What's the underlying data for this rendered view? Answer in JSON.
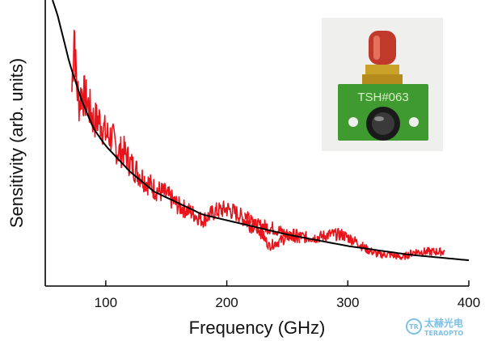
{
  "chart_data": {
    "type": "line",
    "title": "",
    "xlabel": "Frequency (GHz)",
    "ylabel": "Sensitivity (arb. units)",
    "xlim": [
      50,
      400
    ],
    "ylim": [
      0,
      1
    ],
    "xticks": [
      100,
      200,
      300,
      400
    ],
    "x_tick_labels": [
      "100",
      "200",
      "300",
      "400"
    ],
    "y_tick_labels_shown": false,
    "grid": false,
    "series": [
      {
        "color": "#e8141b",
        "style": "noisy-measured",
        "x": [
          72,
          73,
          74,
          75,
          76,
          78,
          80,
          85,
          90,
          95,
          100,
          105,
          110,
          115,
          120,
          130,
          140,
          150,
          160,
          170,
          180,
          190,
          200,
          210,
          220,
          230,
          240,
          250,
          260
        ],
        "y": [
          0.68,
          0.8,
          0.93,
          0.77,
          0.7,
          0.64,
          0.68,
          0.64,
          0.58,
          0.58,
          0.53,
          0.52,
          0.47,
          0.47,
          0.43,
          0.38,
          0.34,
          0.32,
          0.28,
          0.26,
          0.23,
          0.26,
          0.27,
          0.25,
          0.21,
          0.21,
          0.2,
          0.18,
          0.17
        ]
      },
      {
        "color": "#e8141b",
        "style": "noisy-measured",
        "x": [
          215,
          225,
          235,
          245,
          255,
          265,
          275,
          285,
          295,
          305,
          315,
          325,
          335,
          345,
          355,
          365,
          375,
          380
        ],
        "y": [
          0.24,
          0.21,
          0.14,
          0.16,
          0.18,
          0.17,
          0.17,
          0.18,
          0.18,
          0.16,
          0.13,
          0.11,
          0.11,
          0.1,
          0.12,
          0.12,
          0.12,
          0.12
        ]
      },
      {
        "color": "#000000",
        "style": "fit",
        "x": [
          56,
          60,
          70,
          80,
          90,
          100,
          120,
          140,
          160,
          180,
          200,
          250,
          300,
          350,
          400
        ],
        "y": [
          1.0,
          0.95,
          0.78,
          0.65,
          0.55,
          0.49,
          0.4,
          0.33,
          0.29,
          0.25,
          0.23,
          0.18,
          0.14,
          0.11,
          0.09
        ]
      }
    ]
  },
  "inset": {
    "board_label": "TSH#063"
  },
  "watermark": {
    "logo_letters": "TR",
    "text_cn": "太赫光电",
    "text_en": "TERAOPTO"
  },
  "colors": {
    "axes": "#000000",
    "measured": "#e8141b",
    "fit": "#000000",
    "board": "#3f9a2f",
    "connector": "#c0392b",
    "watermark": "#7fc0e6"
  }
}
